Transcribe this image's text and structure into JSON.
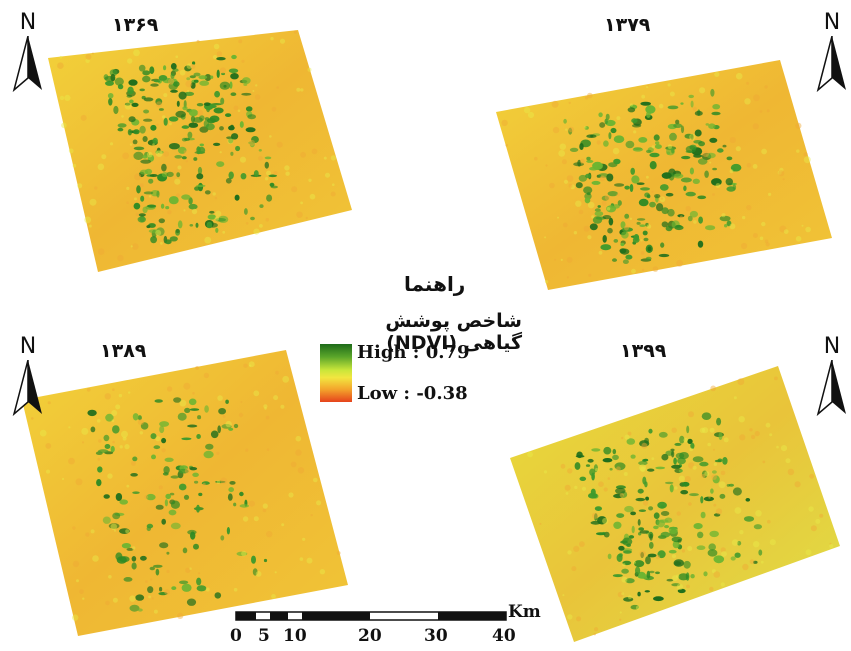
{
  "panels": [
    {
      "year": "۱۳۶۹"
    },
    {
      "year": "۱۳۷۹"
    },
    {
      "year": "۱۳۸۹"
    },
    {
      "year": "۱۳۹۹"
    }
  ],
  "north_arrow": {
    "label": "N"
  },
  "legend": {
    "title": "راهنما",
    "subtitle": "شاخص پوشش گیاهی (NDVI)",
    "high_label": "High : 0.79",
    "low_label": "Low : -0.38",
    "high_value": 0.79,
    "low_value": -0.38,
    "colors": {
      "high": "#1e6b1a",
      "mid": "#f2e640",
      "low": "#e6431c"
    }
  },
  "scale_bar": {
    "unit": "Km",
    "ticks": [
      "0",
      "5",
      "10",
      "20",
      "30",
      "40"
    ]
  }
}
